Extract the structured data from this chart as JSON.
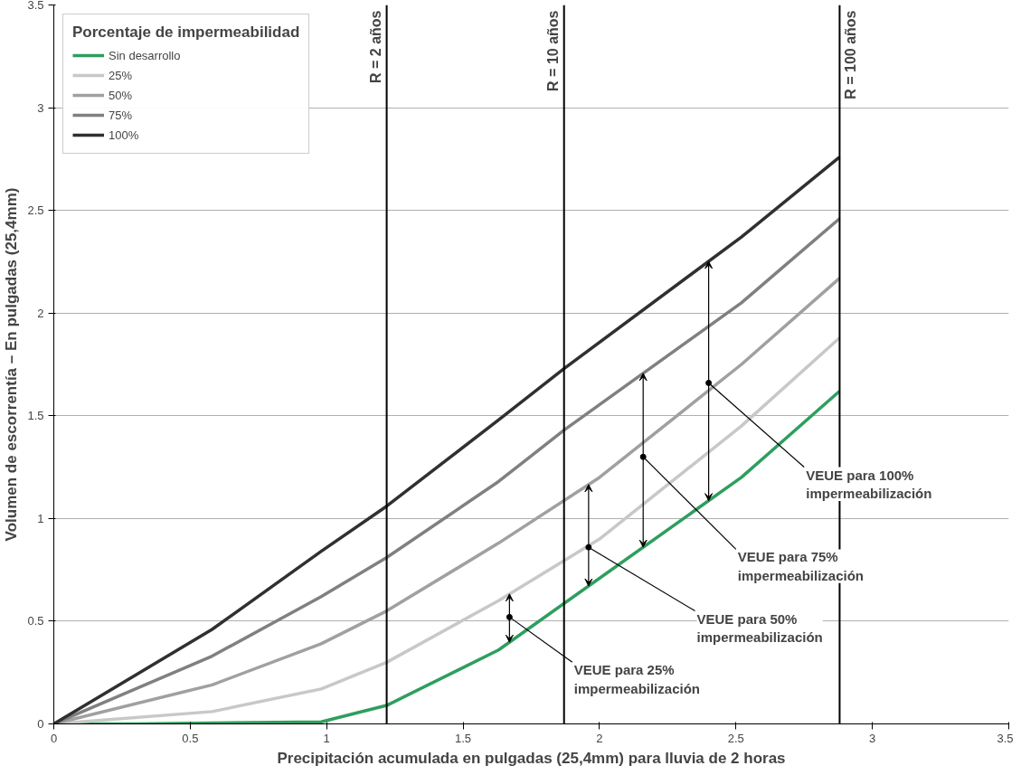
{
  "chart_data": {
    "type": "line",
    "xlabel": "Precipitación acumulada en pulgadas (25,4mm) para lluvia de 2 horas",
    "ylabel": "Volumen de escorrentía – En pulgadas (25,4mm)",
    "legend_title": "Porcentaje de impermeabilidad",
    "legend": "top left",
    "grid": "y",
    "line_style": "solid",
    "marker": "none",
    "xlim": [
      0,
      3.5
    ],
    "ylim": [
      0,
      3.5
    ],
    "xticks": [
      0,
      0.5,
      1,
      1.5,
      2,
      2.5,
      3,
      3.5
    ],
    "yticks": [
      0,
      0.5,
      1,
      1.5,
      2,
      2.5,
      3,
      3.5
    ],
    "series": [
      {
        "name": "Sin desarrollo",
        "color": "#2e9e5e",
        "x": [
          0,
          0.3,
          0.98,
          1.22,
          1.63,
          2.52,
          2.88
        ],
        "values": [
          0,
          0,
          0.01,
          0.09,
          0.36,
          1.2,
          1.62
        ]
      },
      {
        "name": "25%",
        "color": "#c8c8c8",
        "x": [
          0,
          0.58,
          0.98,
          1.22,
          1.63,
          2.0,
          2.52,
          2.88
        ],
        "values": [
          0,
          0.06,
          0.17,
          0.3,
          0.6,
          0.9,
          1.45,
          1.88
        ]
      },
      {
        "name": "50%",
        "color": "#a0a0a0",
        "x": [
          0,
          0.58,
          0.98,
          1.22,
          1.63,
          2.0,
          2.52,
          2.88
        ],
        "values": [
          0,
          0.19,
          0.39,
          0.55,
          0.88,
          1.2,
          1.75,
          2.17
        ]
      },
      {
        "name": "75%",
        "color": "#808080",
        "x": [
          0,
          0.58,
          0.98,
          1.22,
          1.63,
          1.87,
          2.52,
          2.88
        ],
        "values": [
          0,
          0.33,
          0.62,
          0.81,
          1.18,
          1.43,
          2.05,
          2.46
        ]
      },
      {
        "name": "100%",
        "color": "#303030",
        "x": [
          0,
          0.58,
          0.98,
          1.22,
          1.63,
          1.87,
          2.52,
          2.88
        ],
        "values": [
          0,
          0.46,
          0.84,
          1.06,
          1.48,
          1.73,
          2.37,
          2.76
        ]
      }
    ],
    "ref_lines": [
      {
        "axis": "x",
        "value": 1.22,
        "color": "#000000"
      },
      {
        "axis": "x",
        "value": 1.87,
        "color": "#000000"
      },
      {
        "axis": "x",
        "value": 2.88,
        "color": "#000000"
      }
    ],
    "annotations": [
      {
        "text": "R = 2 años",
        "x": 1.22,
        "y": 3.5
      },
      {
        "text": "R = 10 años",
        "x": 1.87,
        "y": 3.5
      },
      {
        "text": "R = 100 años",
        "x": 2.88,
        "y": 3.5
      },
      {
        "text": "VEUE para 25% impermeabilización",
        "x": 1.67,
        "y": 0.52
      },
      {
        "text": "VEUE para 50% impermeabilización",
        "x": 1.96,
        "y": 0.86
      },
      {
        "text": "VEUE para 75% impermeabilización",
        "x": 2.16,
        "y": 1.3
      },
      {
        "text": "VEUE para 100% impermeabilización",
        "x": 2.4,
        "y": 1.66
      }
    ]
  }
}
